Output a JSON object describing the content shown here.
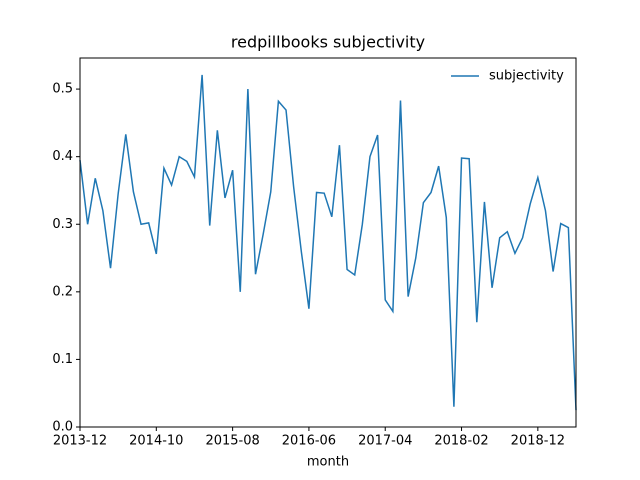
{
  "chart_data": {
    "type": "line",
    "title": "redpillbooks subjectivity",
    "xlabel": "month",
    "x": [
      "2013-12",
      "2014-01",
      "2014-02",
      "2014-03",
      "2014-04",
      "2014-05",
      "2014-06",
      "2014-07",
      "2014-08",
      "2014-09",
      "2014-10",
      "2014-11",
      "2014-12",
      "2015-01",
      "2015-02",
      "2015-03",
      "2015-04",
      "2015-05",
      "2015-06",
      "2015-07",
      "2015-08",
      "2015-09",
      "2015-10",
      "2015-11",
      "2015-12",
      "2016-01",
      "2016-02",
      "2016-03",
      "2016-04",
      "2016-05",
      "2016-06",
      "2016-07",
      "2016-08",
      "2016-09",
      "2016-10",
      "2016-11",
      "2016-12",
      "2017-01",
      "2017-02",
      "2017-03",
      "2017-04",
      "2017-05",
      "2017-06",
      "2017-07",
      "2017-08",
      "2017-09",
      "2017-10",
      "2017-11",
      "2017-12",
      "2018-01",
      "2018-02",
      "2018-03",
      "2018-04",
      "2018-05",
      "2018-06",
      "2018-07",
      "2018-08",
      "2018-09",
      "2018-10",
      "2018-11",
      "2018-12",
      "2019-01",
      "2019-02",
      "2019-03",
      "2019-04",
      "2019-05"
    ],
    "series": [
      {
        "name": "subjectivity",
        "color": "#1f77b4",
        "values": [
          0.395,
          0.3,
          0.368,
          0.32,
          0.235,
          0.345,
          0.433,
          0.348,
          0.3,
          0.302,
          0.256,
          0.383,
          0.358,
          0.4,
          0.393,
          0.37,
          0.521,
          0.298,
          0.439,
          0.339,
          0.38,
          0.2,
          0.5,
          0.226,
          0.285,
          0.348,
          0.482,
          0.469,
          0.355,
          0.26,
          0.175,
          0.347,
          0.346,
          0.311,
          0.417,
          0.233,
          0.225,
          0.3,
          0.4,
          0.432,
          0.188,
          0.171,
          0.483,
          0.193,
          0.25,
          0.332,
          0.347,
          0.386,
          0.31,
          0.03,
          0.398,
          0.397,
          0.155,
          0.333,
          0.206,
          0.28,
          0.289,
          0.257,
          0.28,
          0.33,
          0.369,
          0.32,
          0.23,
          0.301,
          0.295,
          0.025
        ]
      }
    ],
    "xticks": [
      "2013-12",
      "2014-10",
      "2015-08",
      "2016-06",
      "2017-04",
      "2018-02",
      "2018-12"
    ],
    "ylim": [
      0,
      0.546
    ],
    "yticks": [
      {
        "value": 0,
        "label": "0.0"
      },
      0.1,
      0.2,
      0.3,
      0.4,
      0.5
    ],
    "legend": "upper right",
    "grid": false
  }
}
